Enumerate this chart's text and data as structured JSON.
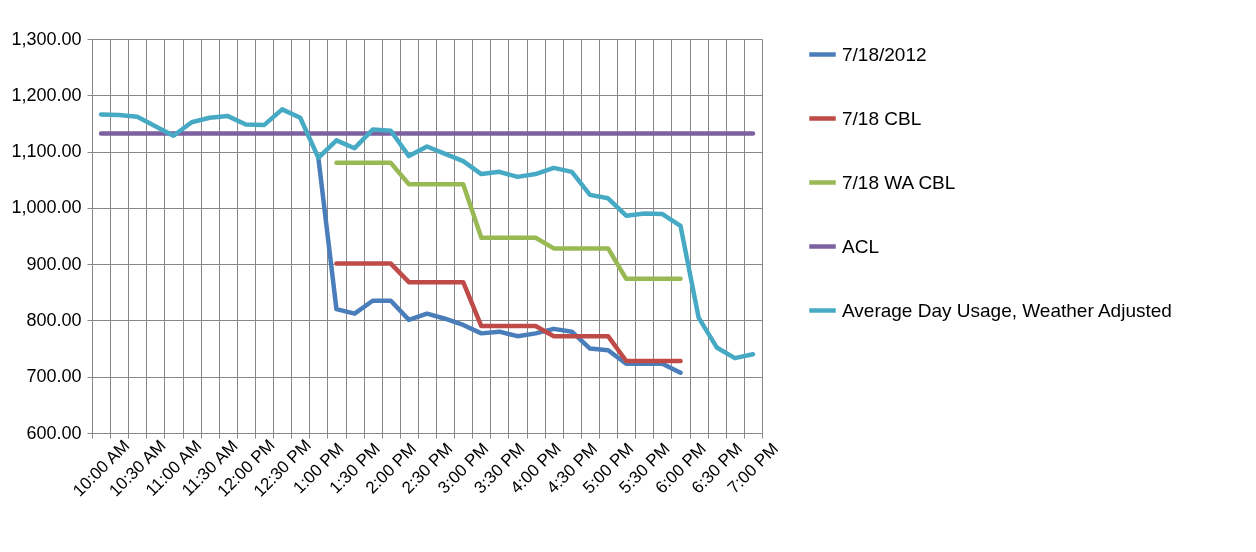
{
  "chart_data": {
    "type": "line",
    "categories": [
      "10:00 AM",
      null,
      "10:30 AM",
      null,
      "11:00 AM",
      null,
      "11:30 AM",
      null,
      "12:00 PM",
      null,
      "12:30 PM",
      null,
      "1:00 PM",
      null,
      "1:30 PM",
      null,
      "2:00 PM",
      null,
      "2:30 PM",
      null,
      "3:00 PM",
      null,
      "3:30 PM",
      null,
      "4:00 PM",
      null,
      "4:30 PM",
      null,
      "5:00 PM",
      null,
      "5:30 PM",
      null,
      "6:00 PM",
      null,
      "6:30 PM",
      null,
      "7:00 PM"
    ],
    "series": [
      {
        "name": "7/18/2012",
        "color": "#4a7ebb",
        "values": [
          null,
          null,
          null,
          null,
          null,
          null,
          null,
          null,
          null,
          null,
          null,
          null,
          1089,
          820,
          812,
          835,
          835,
          801,
          812,
          803,
          792,
          777,
          780,
          772,
          777,
          785,
          780,
          750,
          747,
          723,
          723,
          723,
          707,
          null,
          null,
          null,
          null
        ]
      },
      {
        "name": "7/18 CBL",
        "color": "#be4b48",
        "values": [
          null,
          null,
          null,
          null,
          null,
          null,
          null,
          null,
          null,
          null,
          null,
          null,
          null,
          901,
          901,
          901,
          901,
          868,
          868,
          868,
          868,
          790,
          790,
          790,
          790,
          772,
          772,
          772,
          772,
          728,
          728,
          728,
          728,
          null,
          null,
          null,
          null
        ]
      },
      {
        "name": "7/18 WA CBL",
        "color": "#98b954",
        "values": [
          null,
          null,
          null,
          null,
          null,
          null,
          null,
          null,
          null,
          null,
          null,
          null,
          null,
          1080,
          1080,
          1080,
          1080,
          1042,
          1042,
          1042,
          1042,
          947,
          947,
          947,
          947,
          928,
          928,
          928,
          928,
          874,
          874,
          874,
          874,
          null,
          null,
          null,
          null
        ]
      },
      {
        "name": "ACL",
        "color": "#7d60a0",
        "values": [
          1132,
          1132,
          1132,
          1132,
          1132,
          1132,
          1132,
          1132,
          1132,
          1132,
          1132,
          1132,
          1132,
          1132,
          1132,
          1132,
          1132,
          1132,
          1132,
          1132,
          1132,
          1132,
          1132,
          1132,
          1132,
          1132,
          1132,
          1132,
          1132,
          1132,
          1132,
          1132,
          1132,
          1132,
          1132,
          1132,
          1132
        ]
      },
      {
        "name": "Average Day Usage, Weather Adjusted",
        "color": "#46aac5",
        "values": [
          1166,
          1165,
          1162,
          1145,
          1128,
          1152,
          1160,
          1163,
          1148,
          1147,
          1175,
          1160,
          1089,
          1120,
          1106,
          1139,
          1137,
          1092,
          1109,
          1096,
          1083,
          1060,
          1064,
          1055,
          1060,
          1071,
          1064,
          1023,
          1017,
          986,
          990,
          989,
          968,
          805,
          752,
          733,
          740
        ]
      }
    ],
    "ylim": [
      600,
      1300
    ],
    "yticks": [
      {
        "value": 600,
        "label": "600.00"
      },
      {
        "value": 700,
        "label": "700.00"
      },
      {
        "value": 800,
        "label": "800.00"
      },
      {
        "value": 900,
        "label": "900.00"
      },
      {
        "value": 1000,
        "label": "1,000.00"
      },
      {
        "value": 1100,
        "label": "1,100.00"
      },
      {
        "value": 1200,
        "label": "1,200.00"
      },
      {
        "value": 1300,
        "label": "1,300.00"
      }
    ],
    "grid": true,
    "legend": "right",
    "marker": "none",
    "line_style": "solid"
  }
}
